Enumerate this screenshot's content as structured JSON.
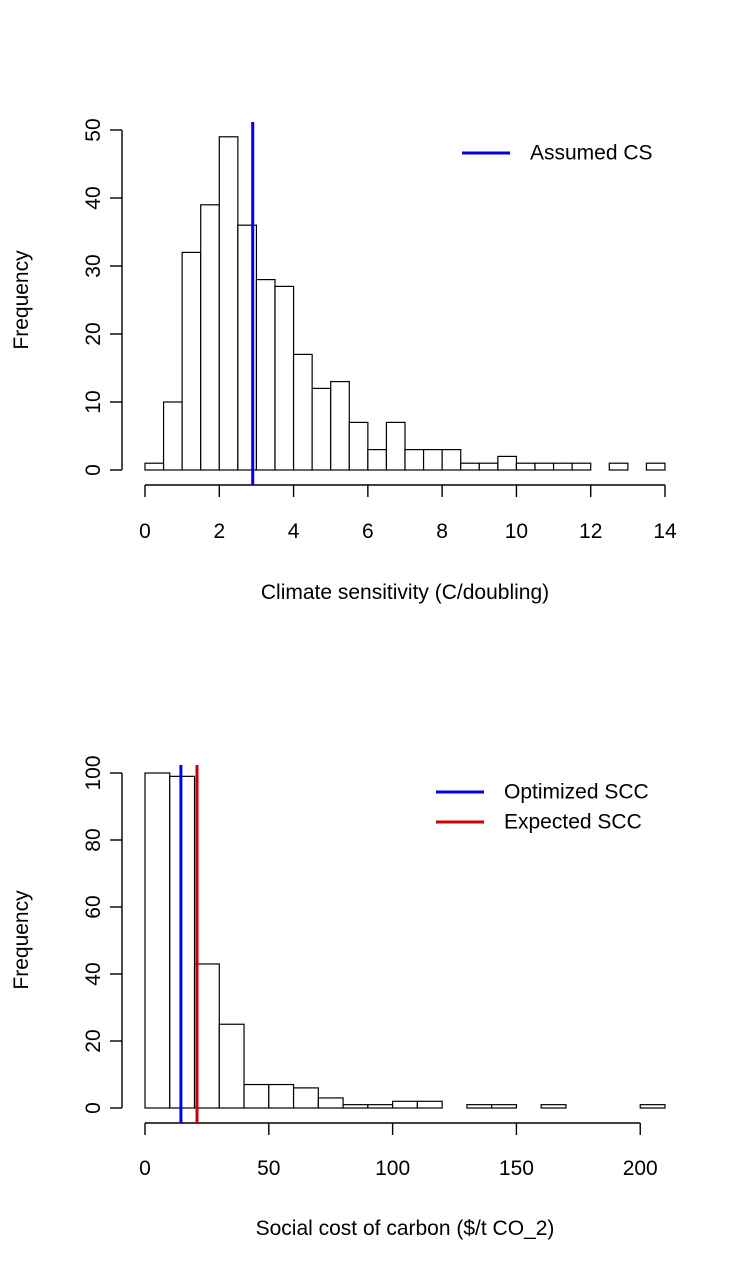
{
  "chart_data": [
    {
      "type": "bar",
      "xlabel": "Climate sensitivity (C/doubling)",
      "ylabel": "Frequency",
      "x_ticks": [
        0,
        2,
        4,
        6,
        8,
        10,
        12,
        14
      ],
      "y_ticks": [
        0,
        10,
        20,
        30,
        40,
        50
      ],
      "xlim": [
        0,
        14
      ],
      "ylim": [
        0,
        50
      ],
      "bin_edges": [
        0,
        0.5,
        1,
        1.5,
        2,
        2.5,
        3,
        3.5,
        4,
        4.5,
        5,
        5.5,
        6,
        6.5,
        7,
        7.5,
        8,
        8.5,
        9,
        9.5,
        10,
        10.5,
        11,
        11.5,
        12,
        12.5,
        13,
        13.5,
        14
      ],
      "values": [
        1,
        10,
        32,
        39,
        49,
        36,
        28,
        27,
        17,
        12,
        13,
        7,
        3,
        7,
        3,
        3,
        3,
        1,
        1,
        2,
        1,
        1,
        1,
        1,
        0,
        1,
        0,
        1
      ],
      "reference_lines": [
        {
          "name": "Assumed CS",
          "x": 2.9,
          "color": "#0000ee"
        }
      ],
      "legend_position": "top-right",
      "grid": false
    },
    {
      "type": "bar",
      "xlabel": "Social cost of carbon ($/t CO_2)",
      "ylabel": "Frequency",
      "x_ticks": [
        0,
        50,
        100,
        150,
        200
      ],
      "y_ticks": [
        0,
        20,
        40,
        60,
        80,
        100
      ],
      "xlim": [
        0,
        210
      ],
      "ylim": [
        0,
        100
      ],
      "bin_edges": [
        0,
        10,
        20,
        30,
        40,
        50,
        60,
        70,
        80,
        90,
        100,
        110,
        120,
        130,
        140,
        150,
        160,
        170,
        180,
        190,
        200,
        210
      ],
      "values": [
        100,
        99,
        43,
        25,
        7,
        7,
        6,
        3,
        1,
        1,
        2,
        2,
        0,
        1,
        1,
        0,
        1,
        0,
        0,
        0,
        1
      ],
      "reference_lines": [
        {
          "name": "Optimized SCC",
          "x": 14.5,
          "color": "#0000ee"
        },
        {
          "name": "Expected SCC",
          "x": 21,
          "color": "#cc0000"
        }
      ],
      "legend_position": "top-right",
      "grid": false
    }
  ]
}
